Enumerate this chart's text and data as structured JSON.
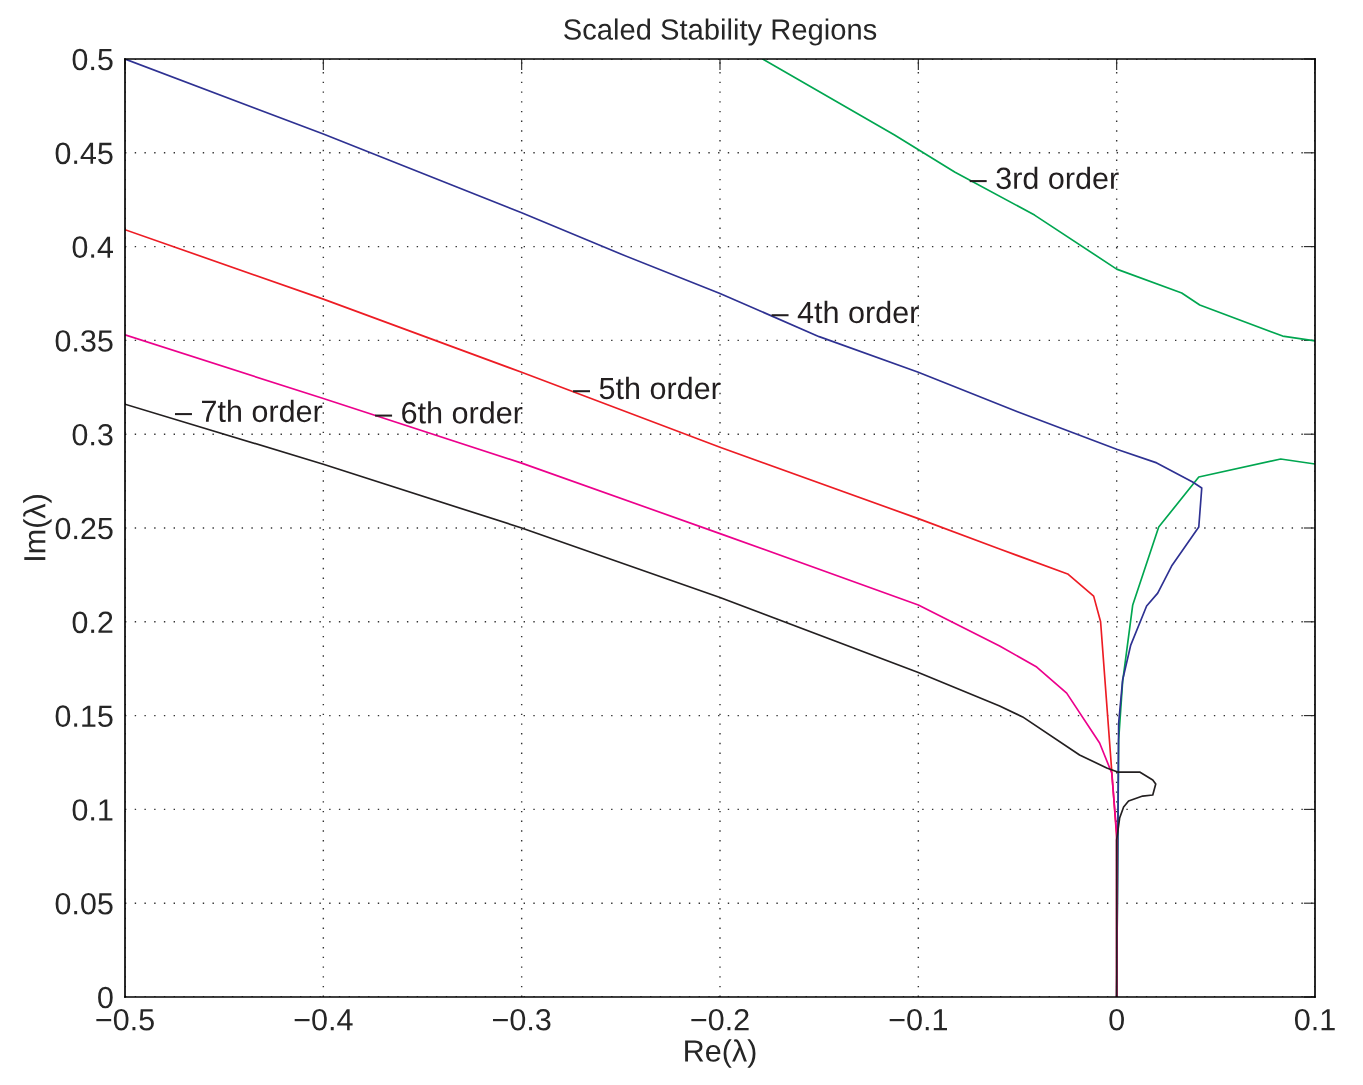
{
  "chart_data": {
    "type": "line",
    "title": "Scaled Stability Regions",
    "xlabel": "Re(λ)",
    "ylabel": "Im(λ)",
    "xlim": [
      -0.5,
      0.1
    ],
    "ylim": [
      0,
      0.5
    ],
    "xticks": [
      {
        "value": -0.5,
        "label": "−0.5"
      },
      {
        "value": -0.4,
        "label": "−0.4"
      },
      {
        "value": -0.3,
        "label": "−0.3"
      },
      {
        "value": -0.2,
        "label": "−0.2"
      },
      {
        "value": -0.1,
        "label": "−0.1"
      },
      0,
      0.1
    ],
    "yticks": [
      0,
      0.05,
      0.1,
      0.15,
      0.2,
      0.25,
      0.3,
      0.35,
      0.4,
      0.45,
      0.5
    ],
    "grid": true,
    "legend": false,
    "line_style": "solid",
    "marker": "none",
    "series": [
      {
        "color": "#00a650",
        "x": [
          0,
          0.001,
          0.003,
          0.0081,
          0.0212,
          0.0414,
          0.0827,
          0.1,
          null,
          0.1,
          0.0837,
          0.0419,
          0.0328,
          0,
          -0.0414,
          -0.0817,
          -0.112,
          -0.1785
        ],
        "values": [
          0,
          0.137,
          0.168,
          0.209,
          0.2505,
          0.2772,
          0.2868,
          0.2841,
          null,
          0.3497,
          0.3523,
          0.3689,
          0.3753,
          0.388,
          0.4168,
          0.4398,
          0.4595,
          0.5
        ]
      },
      {
        "color": "#2e3192",
        "x": [
          -0.5,
          -0.4,
          -0.3,
          -0.25,
          -0.2,
          -0.15,
          -0.1,
          -0.05,
          -0.02,
          0,
          0.0202,
          0.0383,
          0.0429,
          0.0414,
          0.0277,
          0.0207,
          0.0151,
          0.0071,
          0.003,
          0.001,
          0
        ],
        "values": [
          0.5,
          0.46,
          0.418,
          0.396,
          0.375,
          0.352,
          0.333,
          0.312,
          0.3,
          0.292,
          0.2847,
          0.2745,
          0.2713,
          0.2505,
          0.2297,
          0.2153,
          0.2084,
          0.1876,
          0.169,
          0.146,
          0
        ]
      },
      {
        "color": "#ed1c24",
        "x": [
          -0.5,
          -0.4,
          -0.3,
          -0.2,
          -0.1,
          -0.059,
          -0.0247,
          -0.0116,
          -0.0081,
          0,
          0
        ],
        "values": [
          0.409,
          0.372,
          0.333,
          0.293,
          0.255,
          0.2388,
          0.2255,
          0.2137,
          0.2,
          0.0853,
          0
        ]
      },
      {
        "color": "#ec008c",
        "x": [
          -0.5,
          -0.4,
          -0.3,
          -0.2,
          -0.1,
          -0.059,
          -0.0403,
          -0.0252,
          -0.0086,
          -0.0025,
          0,
          0
        ],
        "values": [
          0.353,
          0.319,
          0.2846,
          0.247,
          0.209,
          0.1871,
          0.1759,
          0.162,
          0.1354,
          0.1194,
          0.0874,
          0
        ]
      },
      {
        "color": "#231f20",
        "x": [
          -0.5,
          -0.4,
          -0.3,
          -0.2,
          -0.1,
          -0.059,
          -0.0474,
          -0.0187,
          -0.005,
          0.0005,
          0.0116,
          0.0182,
          0.0197,
          0.0182,
          0.0131,
          0.006,
          0.0035,
          0.0015,
          0,
          0
        ],
        "values": [
          0.316,
          0.284,
          0.25,
          0.213,
          0.173,
          0.1551,
          0.1493,
          0.129,
          0.1221,
          0.1199,
          0.1199,
          0.1157,
          0.1135,
          0.1077,
          0.1071,
          0.1045,
          0.1013,
          0.0954,
          0.0837,
          0
        ]
      }
    ],
    "annotations": [
      {
        "text": "– 3rd order",
        "x": -0.0741,
        "y": 0.435
      },
      {
        "text": "– 4th order",
        "x": -0.174,
        "y": 0.3635
      },
      {
        "text": "– 5th order",
        "x": -0.2741,
        "y": 0.323
      },
      {
        "text": "– 6th order",
        "x": -0.3739,
        "y": 0.31
      },
      {
        "text": "– 7th order",
        "x": -0.4748,
        "y": 0.3108
      }
    ]
  }
}
